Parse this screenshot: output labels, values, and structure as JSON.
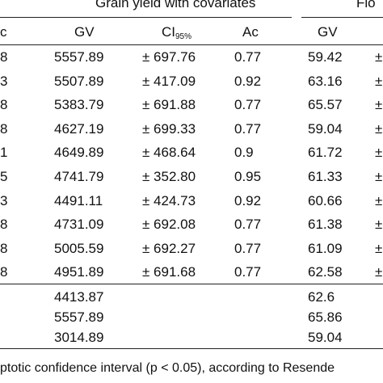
{
  "group1_title": "Grain yield with covariates",
  "group2_title_partial": "Flo",
  "columns": {
    "leftcut": "c",
    "gv": "GV",
    "ci": "CI",
    "ci_sub": "95%",
    "ac": "Ac",
    "gv2": "GV"
  },
  "rows": [
    {
      "left": "8",
      "gv": "5557.89",
      "ci": "± 697.76",
      "ac": "0.77",
      "gv2": "59.42",
      "right": "±"
    },
    {
      "left": "3",
      "gv": "5507.89",
      "ci": "± 417.09",
      "ac": "0.92",
      "gv2": "63.16",
      "right": "±"
    },
    {
      "left": "8",
      "gv": "5383.79",
      "ci": "± 691.88",
      "ac": "0.77",
      "gv2": "65.57",
      "right": "±"
    },
    {
      "left": "8",
      "gv": "4627.19",
      "ci": "± 699.33",
      "ac": "0.77",
      "gv2": "59.04",
      "right": "±"
    },
    {
      "left": "1",
      "gv": "4649.89",
      "ci": "± 468.64",
      "ac": "0.9",
      "gv2": "61.72",
      "right": "±"
    },
    {
      "left": "5",
      "gv": "4741.79",
      "ci": "± 352.80",
      "ac": "0.95",
      "gv2": "61.33",
      "right": "±"
    },
    {
      "left": "3",
      "gv": "4491.11",
      "ci": "± 424.73",
      "ac": "0.92",
      "gv2": "60.66",
      "right": "±"
    },
    {
      "left": "8",
      "gv": "4731.09",
      "ci": "± 692.08",
      "ac": "0.77",
      "gv2": "61.38",
      "right": "±"
    },
    {
      "left": "8",
      "gv": "5005.59",
      "ci": "± 692.27",
      "ac": "0.77",
      "gv2": "61.09",
      "right": "±"
    },
    {
      "left": "8",
      "gv": "4951.89",
      "ci": "± 691.68",
      "ac": "0.77",
      "gv2": "62.58",
      "right": "±"
    }
  ],
  "summary": [
    {
      "gv": "4413.87",
      "gv2": "62.6"
    },
    {
      "gv": "5557.89",
      "gv2": "65.86"
    },
    {
      "gv": "3014.89",
      "gv2": "59.04"
    }
  ],
  "footnote": "ptotic confidence interval (p < 0.05), according to Resende"
}
